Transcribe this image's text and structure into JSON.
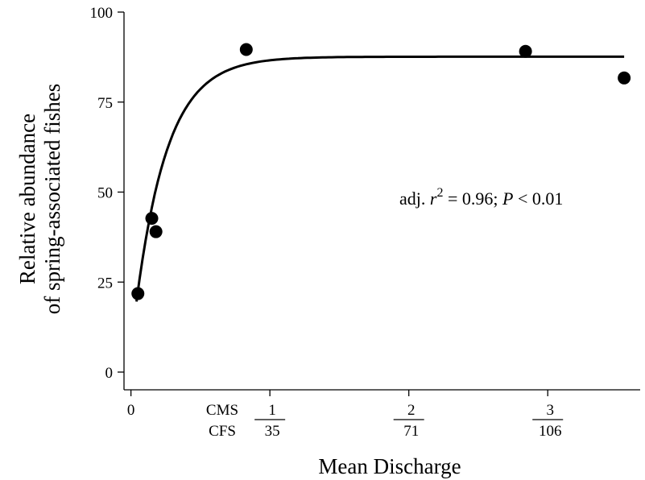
{
  "chart_data": {
    "type": "scatter",
    "title": "",
    "xlabel": "Mean Discharge",
    "ylabel": [
      "Relative abundance",
      "of spring-associated fishes"
    ],
    "xlim": [
      -0.05,
      3.7
    ],
    "ylim": [
      0,
      100
    ],
    "y_ticks": [
      0,
      25,
      50,
      75,
      100
    ],
    "x_ticks": [
      0,
      1,
      2,
      3
    ],
    "x_tick_labels": [
      {
        "value": 0,
        "cms": "0",
        "cfs": ""
      },
      {
        "value": 1,
        "cms": "1",
        "cfs": "35"
      },
      {
        "value": 2,
        "cms": "2",
        "cfs": "71"
      },
      {
        "value": 3,
        "cms": "3",
        "cfs": "106"
      }
    ],
    "unit_labels": {
      "cms": "CMS",
      "cfs": "CFS"
    },
    "grid": false,
    "series": [
      {
        "type": "scatter",
        "points": [
          {
            "x": 0.05,
            "y": 21.8
          },
          {
            "x": 0.15,
            "y": 42.7
          },
          {
            "x": 0.18,
            "y": 39.0
          },
          {
            "x": 0.83,
            "y": 89.6
          },
          {
            "x": 2.84,
            "y": 89.1
          },
          {
            "x": 3.55,
            "y": 81.7
          }
        ]
      },
      {
        "type": "line",
        "model": "exponential rise to maximum",
        "params": {
          "y0": 6.5,
          "a": 81.1,
          "b": 4.4
        },
        "x_range": [
          0.04,
          3.55
        ]
      }
    ],
    "annotation": {
      "prefix": "adj. ",
      "r_symbol": "r",
      "exponent": "2",
      "middle": " = 0.96; ",
      "p_symbol": "P",
      "suffix": " < 0.01"
    }
  }
}
